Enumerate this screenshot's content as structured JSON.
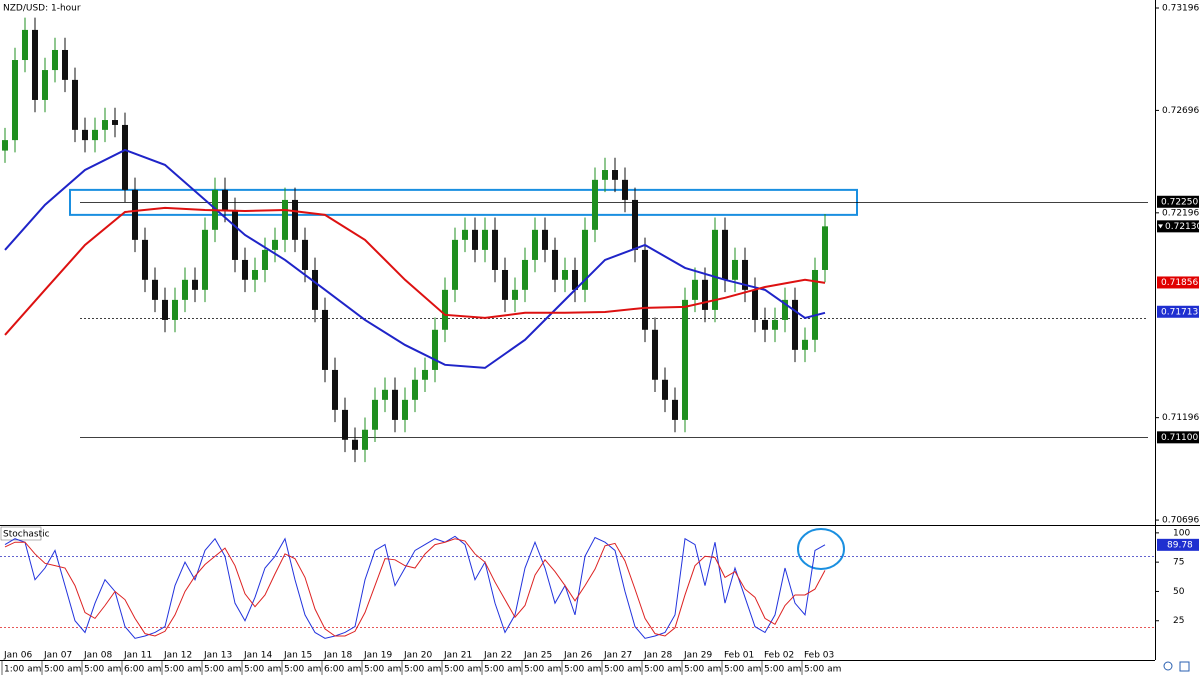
{
  "chart_data": {
    "type": "candlestick",
    "title": "NZD/USD: 1-hour",
    "ylim": [
      0.70672,
      0.73235
    ],
    "yticks": [
      0.73196,
      0.72696,
      0.72196,
      0.71196,
      0.70696
    ],
    "up_color": "#1f8f1f",
    "down_color": "#111111",
    "open": [
      0.725,
      0.72551,
      0.72942,
      0.73089,
      0.72747,
      0.72893,
      0.72991,
      0.72845,
      0.72601,
      0.72551,
      0.72601,
      0.72649,
      0.72625,
      0.72308,
      0.72064,
      0.71869,
      0.71771,
      0.71673,
      0.71771,
      0.71869,
      0.7182,
      0.72113,
      0.72308,
      0.7221,
      0.71966,
      0.71869,
      0.71917,
      0.72015,
      0.72064,
      0.72259,
      0.72064,
      0.71917,
      0.71722,
      0.71429,
      0.71234,
      0.71088,
      0.71039,
      0.71137,
      0.71283,
      0.71332,
      0.71185,
      0.71283,
      0.71381,
      0.71429,
      0.71625,
      0.7182,
      0.72064,
      0.72113,
      0.72015,
      0.72113,
      0.71917,
      0.71771,
      0.7182,
      0.71966,
      0.72113,
      0.72015,
      0.71869,
      0.71917,
      0.7182,
      0.72113,
      0.72357,
      0.72405,
      0.72357,
      0.72259,
      0.72015,
      0.71625,
      0.71381,
      0.71283,
      0.71185,
      0.71771,
      0.71869,
      0.71722,
      0.72113,
      0.71869,
      0.71966,
      0.7182,
      0.71673,
      0.71625,
      0.71673,
      0.71771,
      0.71527,
      0.71576,
      0.71917
    ],
    "high": [
      0.72611,
      0.73002,
      0.73149,
      0.73149,
      0.72953,
      0.73051,
      0.73051,
      0.72905,
      0.72661,
      0.72661,
      0.72709,
      0.72709,
      0.72685,
      0.72368,
      0.72124,
      0.71929,
      0.71831,
      0.71831,
      0.71929,
      0.71929,
      0.72173,
      0.72368,
      0.72368,
      0.7227,
      0.72026,
      0.71977,
      0.72075,
      0.72124,
      0.72319,
      0.72319,
      0.72124,
      0.71977,
      0.71782,
      0.71489,
      0.71294,
      0.71148,
      0.71197,
      0.71343,
      0.71392,
      0.71392,
      0.71343,
      0.71441,
      0.71489,
      0.71685,
      0.7188,
      0.72124,
      0.72173,
      0.72173,
      0.72173,
      0.72173,
      0.71977,
      0.7188,
      0.72026,
      0.72173,
      0.72173,
      0.72075,
      0.71977,
      0.71977,
      0.72173,
      0.72417,
      0.72465,
      0.72465,
      0.72417,
      0.72319,
      0.72075,
      0.71685,
      0.71441,
      0.71343,
      0.71831,
      0.71929,
      0.71929,
      0.72173,
      0.72173,
      0.72026,
      0.72026,
      0.7188,
      0.71733,
      0.71733,
      0.71831,
      0.71831,
      0.71636,
      0.71977,
      0.7219
    ],
    "low": [
      0.7244,
      0.72491,
      0.72882,
      0.72687,
      0.72687,
      0.72833,
      0.72785,
      0.72541,
      0.72491,
      0.72491,
      0.72541,
      0.72565,
      0.72248,
      0.72004,
      0.71809,
      0.71711,
      0.71613,
      0.71613,
      0.71711,
      0.7176,
      0.7176,
      0.72053,
      0.7215,
      0.71906,
      0.71809,
      0.71809,
      0.71857,
      0.71955,
      0.72004,
      0.72004,
      0.71857,
      0.71662,
      0.71369,
      0.71174,
      0.71028,
      0.70979,
      0.70979,
      0.71077,
      0.71223,
      0.71125,
      0.71125,
      0.71223,
      0.71321,
      0.71369,
      0.71565,
      0.7176,
      0.72004,
      0.71955,
      0.71955,
      0.71857,
      0.71711,
      0.71711,
      0.7176,
      0.71906,
      0.71955,
      0.71809,
      0.71809,
      0.7176,
      0.7176,
      0.72053,
      0.72297,
      0.72297,
      0.72199,
      0.71955,
      0.71565,
      0.71321,
      0.71223,
      0.71125,
      0.71125,
      0.71711,
      0.71662,
      0.71662,
      0.71809,
      0.71809,
      0.7176,
      0.71613,
      0.71565,
      0.71565,
      0.71613,
      0.71467,
      0.71467,
      0.71516,
      0.71857
    ],
    "close": [
      0.72551,
      0.72942,
      0.73089,
      0.72747,
      0.72893,
      0.72991,
      0.72845,
      0.72601,
      0.72551,
      0.72601,
      0.72649,
      0.72625,
      0.72308,
      0.72064,
      0.71869,
      0.71771,
      0.71673,
      0.71771,
      0.71869,
      0.7182,
      0.72113,
      0.72308,
      0.7221,
      0.71966,
      0.71869,
      0.71917,
      0.72015,
      0.72064,
      0.72259,
      0.72064,
      0.71917,
      0.71722,
      0.71429,
      0.71234,
      0.71088,
      0.71039,
      0.71137,
      0.71283,
      0.71332,
      0.71185,
      0.71283,
      0.71381,
      0.71429,
      0.71625,
      0.7182,
      0.72064,
      0.72113,
      0.72015,
      0.72113,
      0.71917,
      0.71771,
      0.7182,
      0.71966,
      0.72113,
      0.72015,
      0.71869,
      0.71917,
      0.7182,
      0.72113,
      0.72357,
      0.72405,
      0.72357,
      0.72259,
      0.72015,
      0.71625,
      0.71381,
      0.71283,
      0.71185,
      0.71771,
      0.71869,
      0.71722,
      0.72113,
      0.71869,
      0.71966,
      0.7182,
      0.71673,
      0.71625,
      0.71673,
      0.71771,
      0.71527,
      0.71576,
      0.71917,
      0.7213
    ],
    "moving_averages": [
      {
        "color": "#1f24c8",
        "x": [
          0,
          4,
          8,
          12,
          16,
          20,
          24,
          28,
          32,
          36,
          40,
          44,
          48,
          52,
          56,
          60,
          64,
          68,
          72,
          76,
          80,
          82
        ],
        "values": [
          0.72015,
          0.72235,
          0.72405,
          0.72503,
          0.7243,
          0.72259,
          0.72088,
          0.71966,
          0.7182,
          0.71673,
          0.71551,
          0.71454,
          0.71439,
          0.71576,
          0.71771,
          0.71966,
          0.72039,
          0.71927,
          0.71869,
          0.7182,
          0.71683,
          0.71708
        ]
      },
      {
        "color": "#dd1111",
        "x": [
          0,
          4,
          8,
          12,
          16,
          20,
          24,
          28,
          32,
          36,
          40,
          44,
          48,
          52,
          56,
          60,
          64,
          68,
          72,
          76,
          80,
          82
        ],
        "values": [
          0.716,
          0.7182,
          0.72039,
          0.722,
          0.7222,
          0.7221,
          0.72205,
          0.7221,
          0.72186,
          0.72064,
          0.71869,
          0.71698,
          0.71683,
          0.71708,
          0.71708,
          0.71712,
          0.71732,
          0.71737,
          0.71781,
          0.71834,
          0.71869,
          0.71854
        ]
      }
    ],
    "zone": {
      "x": [
        6.5,
        85.2
      ],
      "y": [
        0.72186,
        0.72308
      ],
      "color": "#1a8fe0"
    },
    "levels": [
      {
        "value": 0.7225,
        "style": "solid"
      },
      {
        "value": 0.71683,
        "style": "dotted"
      },
      {
        "value": 0.711,
        "style": "solid"
      }
    ],
    "markers": [
      {
        "value": 0.7225,
        "label": "0.72250",
        "color": "#000000"
      },
      {
        "value": 0.7213,
        "label": "0.72130",
        "color": "#000000"
      },
      {
        "value": 0.71856,
        "color": "#e00000"
      },
      {
        "value": 0.71713,
        "color": "#1f2fd0"
      },
      {
        "value": 0.711,
        "label": "0.71100",
        "color": "#000000"
      }
    ],
    "time_axis": [
      {
        "date": "Jan 06",
        "time": "1:00 am"
      },
      {
        "date": "Jan 07",
        "time": "5:00 am"
      },
      {
        "date": "Jan 08",
        "time": "5:00 am"
      },
      {
        "date": "Jan 11",
        "time": "6:00 am"
      },
      {
        "date": "Jan 12",
        "time": "5:00 am"
      },
      {
        "date": "Jan 13",
        "time": "5:00 am"
      },
      {
        "date": "Jan 14",
        "time": "5:00 am"
      },
      {
        "date": "Jan 15",
        "time": "5:00 am"
      },
      {
        "date": "Jan 18",
        "time": "6:00 am"
      },
      {
        "date": "Jan 19",
        "time": "5:00 am"
      },
      {
        "date": "Jan 20",
        "time": "5:00 am"
      },
      {
        "date": "Jan 21",
        "time": "5:00 am"
      },
      {
        "date": "Jan 22",
        "time": "5:00 am"
      },
      {
        "date": "Jan 25",
        "time": "5:00 am"
      },
      {
        "date": "Jan 26",
        "time": "5:00 am"
      },
      {
        "date": "Jan 27",
        "time": "5:00 am"
      },
      {
        "date": "Jan 28",
        "time": "5:00 am"
      },
      {
        "date": "Jan 29",
        "time": "5:00 am"
      },
      {
        "date": "Feb 01",
        "time": "5:00 am"
      },
      {
        "date": "Feb 02",
        "time": "5:00 am"
      },
      {
        "date": "Feb 03",
        "time": "5:00 am"
      }
    ],
    "stochastic": {
      "title": "Stochastic",
      "ylim": [
        -8.5,
        105
      ],
      "yticks": [
        100,
        75,
        50,
        25
      ],
      "levels": [
        {
          "value": 80,
          "color": "#3030c0"
        },
        {
          "value": 20,
          "color": "#e02020"
        }
      ],
      "marker": {
        "value": 89.78,
        "color": "#1f2fd0"
      },
      "series": [
        {
          "color": "#2233dd",
          "values": [
            90,
            95,
            92,
            60,
            70,
            85,
            55,
            25,
            15,
            40,
            60,
            50,
            20,
            10,
            12,
            15,
            20,
            55,
            75,
            60,
            85,
            95,
            80,
            40,
            25,
            45,
            70,
            80,
            95,
            60,
            30,
            15,
            10,
            12,
            15,
            20,
            60,
            85,
            90,
            55,
            70,
            85,
            90,
            95,
            92,
            97,
            90,
            60,
            75,
            40,
            15,
            30,
            70,
            92,
            70,
            40,
            55,
            30,
            80,
            96,
            92,
            85,
            50,
            20,
            10,
            12,
            15,
            30,
            95,
            90,
            55,
            92,
            40,
            70,
            45,
            20,
            15,
            30,
            70,
            40,
            30,
            85,
            89.78
          ]
        },
        {
          "color": "#dd2222",
          "values": [
            88,
            92,
            92,
            82,
            74,
            72,
            70,
            55,
            32,
            27,
            38,
            50,
            43,
            27,
            14,
            12,
            16,
            30,
            50,
            63,
            73,
            80,
            87,
            72,
            48,
            37,
            47,
            65,
            82,
            78,
            62,
            35,
            18,
            12,
            12,
            16,
            32,
            55,
            78,
            77,
            72,
            70,
            82,
            90,
            92,
            95,
            93,
            82,
            75,
            58,
            43,
            28,
            38,
            64,
            77,
            67,
            55,
            42,
            55,
            69,
            89,
            91,
            76,
            52,
            27,
            14,
            12,
            19,
            47,
            72,
            80,
            79,
            62,
            67,
            52,
            45,
            27,
            22,
            38,
            47,
            47,
            52,
            68
          ]
        }
      ]
    }
  }
}
